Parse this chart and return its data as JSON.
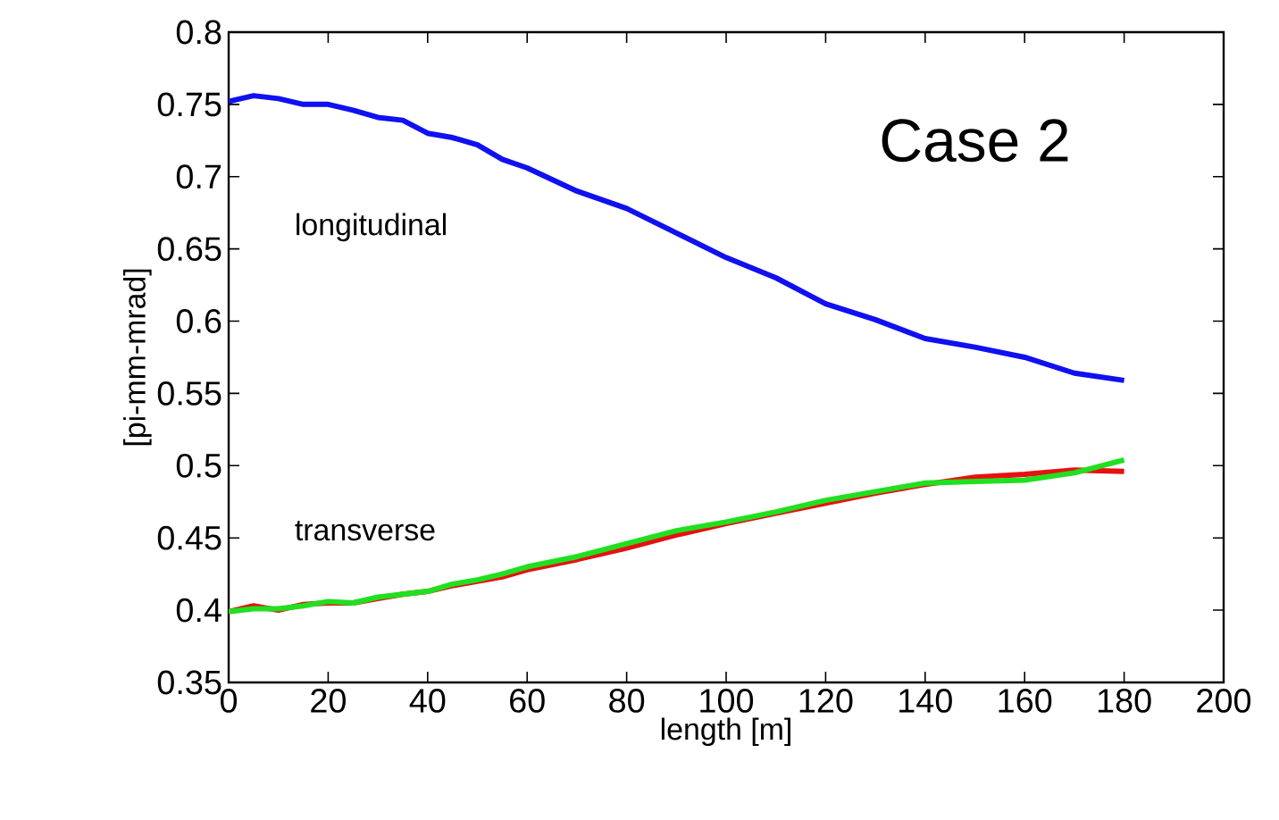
{
  "chart_data": {
    "type": "line",
    "xlabel": "length [m]",
    "ylabel": "[pi-mm-mrad]",
    "annotations": [
      "longitudinal",
      "transverse",
      "Case 2"
    ],
    "x": [
      0,
      5,
      10,
      15,
      20,
      25,
      30,
      35,
      40,
      45,
      50,
      55,
      60,
      70,
      80,
      90,
      100,
      110,
      120,
      130,
      140,
      150,
      160,
      170,
      180
    ],
    "series": [
      {
        "color": "#1010f0",
        "values": [
          0.752,
          0.756,
          0.754,
          0.75,
          0.75,
          0.746,
          0.741,
          0.739,
          0.73,
          0.727,
          0.722,
          0.712,
          0.706,
          0.69,
          0.678,
          0.661,
          0.644,
          0.63,
          0.612,
          0.601,
          0.588,
          0.582,
          0.575,
          0.564,
          0.559
        ]
      },
      {
        "color": "#e81010",
        "values": [
          0.399,
          0.403,
          0.4,
          0.404,
          0.405,
          0.405,
          0.408,
          0.411,
          0.413,
          0.417,
          0.42,
          0.423,
          0.428,
          0.435,
          0.443,
          0.452,
          0.46,
          0.467,
          0.474,
          0.481,
          0.487,
          0.492,
          0.494,
          0.497,
          0.496
        ]
      },
      {
        "color": "#20e020",
        "values": [
          0.399,
          0.401,
          0.401,
          0.403,
          0.406,
          0.405,
          0.409,
          0.411,
          0.413,
          0.418,
          0.421,
          0.425,
          0.43,
          0.437,
          0.446,
          0.455,
          0.461,
          0.468,
          0.476,
          0.482,
          0.488,
          0.489,
          0.49,
          0.495,
          0.504
        ]
      }
    ],
    "xlim": [
      0,
      200
    ],
    "ylim": [
      0.35,
      0.8
    ],
    "xticks": [
      0,
      20,
      40,
      60,
      80,
      100,
      120,
      140,
      160,
      180,
      200
    ],
    "yticks": [
      0.35,
      0.4,
      0.45,
      0.5,
      0.55,
      0.6,
      0.65,
      0.7,
      0.75,
      0.8
    ],
    "marker": "none",
    "line_style": "solid"
  }
}
